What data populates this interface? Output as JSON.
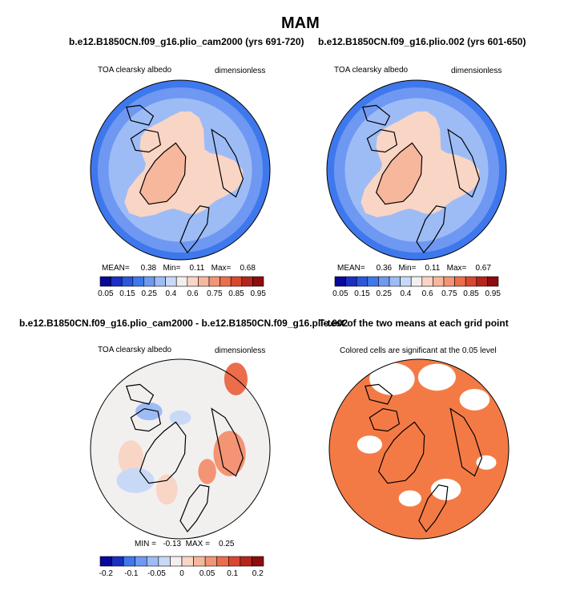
{
  "figure": {
    "title": "MAM"
  },
  "colors": {
    "blue_scale": [
      "#08089a",
      "#1a2fc4",
      "#2a57dc",
      "#3e78ec",
      "#6e98f2",
      "#9dbcf6",
      "#c8d9f8",
      "#f2efef",
      "#f9d5c5",
      "#f6b79c",
      "#f39474",
      "#ec6d4c",
      "#d9472f",
      "#b6241c",
      "#8e0c0c"
    ],
    "land_outline": "#000000",
    "sig": "#f47a45"
  },
  "chart_data": [
    {
      "type": "heatmap",
      "title": "b.e12.B1850CN.f09_g16.plio_cam2000 (yrs 691-720)",
      "variable": "TOA clearsky albedo",
      "units": "dimensionless",
      "stats": {
        "mean_label": "MEAN=",
        "mean": "0.38",
        "min_label": "Min=",
        "min": "0.11",
        "max_label": "Max=",
        "max": "0.68"
      },
      "colorbar": {
        "tick_labels": [
          "0.05",
          "0.15",
          "0.25",
          "0.4",
          "0.6",
          "0.75",
          "0.85",
          "0.95"
        ]
      }
    },
    {
      "type": "heatmap",
      "title": "b.e12.B1850CN.f09_g16.plio.002 (yrs 601-650)",
      "variable": "TOA clearsky albedo",
      "units": "dimensionless",
      "stats": {
        "mean_label": "MEAN=",
        "mean": "0.36",
        "min_label": "Min=",
        "min": "0.11",
        "max_label": "Max=",
        "max": "0.67"
      },
      "colorbar": {
        "tick_labels": [
          "0.05",
          "0.15",
          "0.25",
          "0.4",
          "0.6",
          "0.75",
          "0.85",
          "0.95"
        ]
      }
    },
    {
      "type": "heatmap",
      "title": "b.e12.B1850CN.f09_g16.plio_cam2000 - b.e12.B1850CN.f09_g16.plio.002",
      "variable": "TOA clearsky albedo",
      "units": "dimensionless",
      "stats": {
        "text": "MIN =   -0.13  MAX =    0.25"
      },
      "colorbar": {
        "tick_labels": [
          "-0.2",
          "-0.1",
          "-0.05",
          "0",
          "0.05",
          "0.1",
          "0.2"
        ]
      }
    },
    {
      "type": "heatmap",
      "title": "T-test of the two means at each grid point",
      "subtitle": "Colored cells are significant at the 0.05 level"
    }
  ]
}
